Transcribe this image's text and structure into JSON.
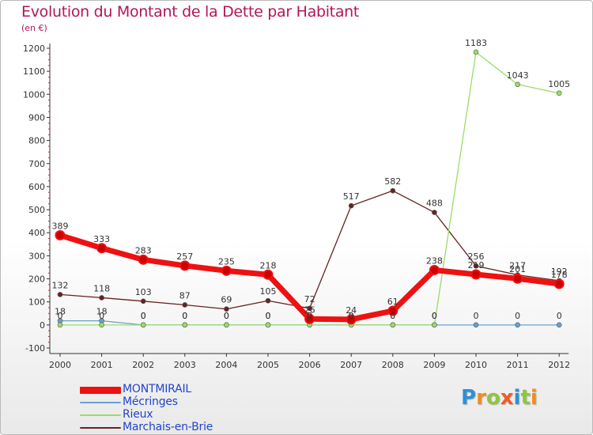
{
  "header": {
    "title": "Evolution du Montant de la Dette par Habitant",
    "subtitle": "(en €)"
  },
  "logo": {
    "letters": [
      "P",
      "r",
      "o",
      "x",
      "i",
      "t",
      "i"
    ],
    "colors": [
      "#2f8fd6",
      "#f28c1c",
      "#8fc640",
      "#f05a28",
      "#2f8fd6",
      "#8fc640",
      "#f28c1c"
    ]
  },
  "chart_data": {
    "type": "line",
    "title": "Evolution du Montant de la Dette par Habitant",
    "subtitle": "(en €)",
    "xlabel": "",
    "ylabel": "",
    "x": [
      "2000",
      "2001",
      "2002",
      "2003",
      "2004",
      "2005",
      "2006",
      "2007",
      "2008",
      "2009",
      "2010",
      "2011",
      "2012"
    ],
    "ylim": [
      -100,
      1200
    ],
    "yticks": [
      "-100",
      "0",
      "100",
      "200",
      "300",
      "400",
      "500",
      "600",
      "700",
      "800",
      "900",
      "1000",
      "1100",
      "1200"
    ],
    "grid": false,
    "legend_position": "bottom-left",
    "series": [
      {
        "name": "MONTMIRAIL",
        "color": "#ee1111",
        "values": [
          389,
          333,
          283,
          257,
          235,
          218,
          26,
          24,
          61,
          238,
          219,
          201,
          178
        ],
        "labels": [
          "389",
          "333",
          "283",
          "257",
          "235",
          "218",
          "26",
          "24",
          "61",
          "238",
          "219",
          "201",
          "178"
        ]
      },
      {
        "name": "Mécringes",
        "color": "#6a9fd0",
        "values": [
          18,
          18,
          0,
          0,
          0,
          0,
          0,
          0,
          0,
          0,
          0,
          0,
          0
        ],
        "labels": [
          "18",
          "18",
          "0",
          "0",
          "0",
          "0",
          "0",
          "0",
          "0",
          "0",
          "0",
          "0",
          "0"
        ]
      },
      {
        "name": "Rieux",
        "color": "#99dd66",
        "values": [
          0,
          0,
          0,
          0,
          0,
          0,
          0,
          0,
          0,
          0,
          1183,
          1043,
          1005
        ],
        "labels": [
          "0",
          "0",
          "0",
          "0",
          "0",
          "0",
          "0",
          "0",
          "0",
          "0",
          "1183",
          "1043",
          "1005"
        ]
      },
      {
        "name": "Marchais-en-Brie",
        "color": "#662222",
        "values": [
          132,
          118,
          103,
          87,
          69,
          105,
          72,
          517,
          582,
          488,
          256,
          217,
          192
        ],
        "labels": [
          "132",
          "118",
          "103",
          "87",
          "69",
          "105",
          "72",
          "517",
          "582",
          "488",
          "256",
          "217",
          "192"
        ]
      }
    ]
  }
}
